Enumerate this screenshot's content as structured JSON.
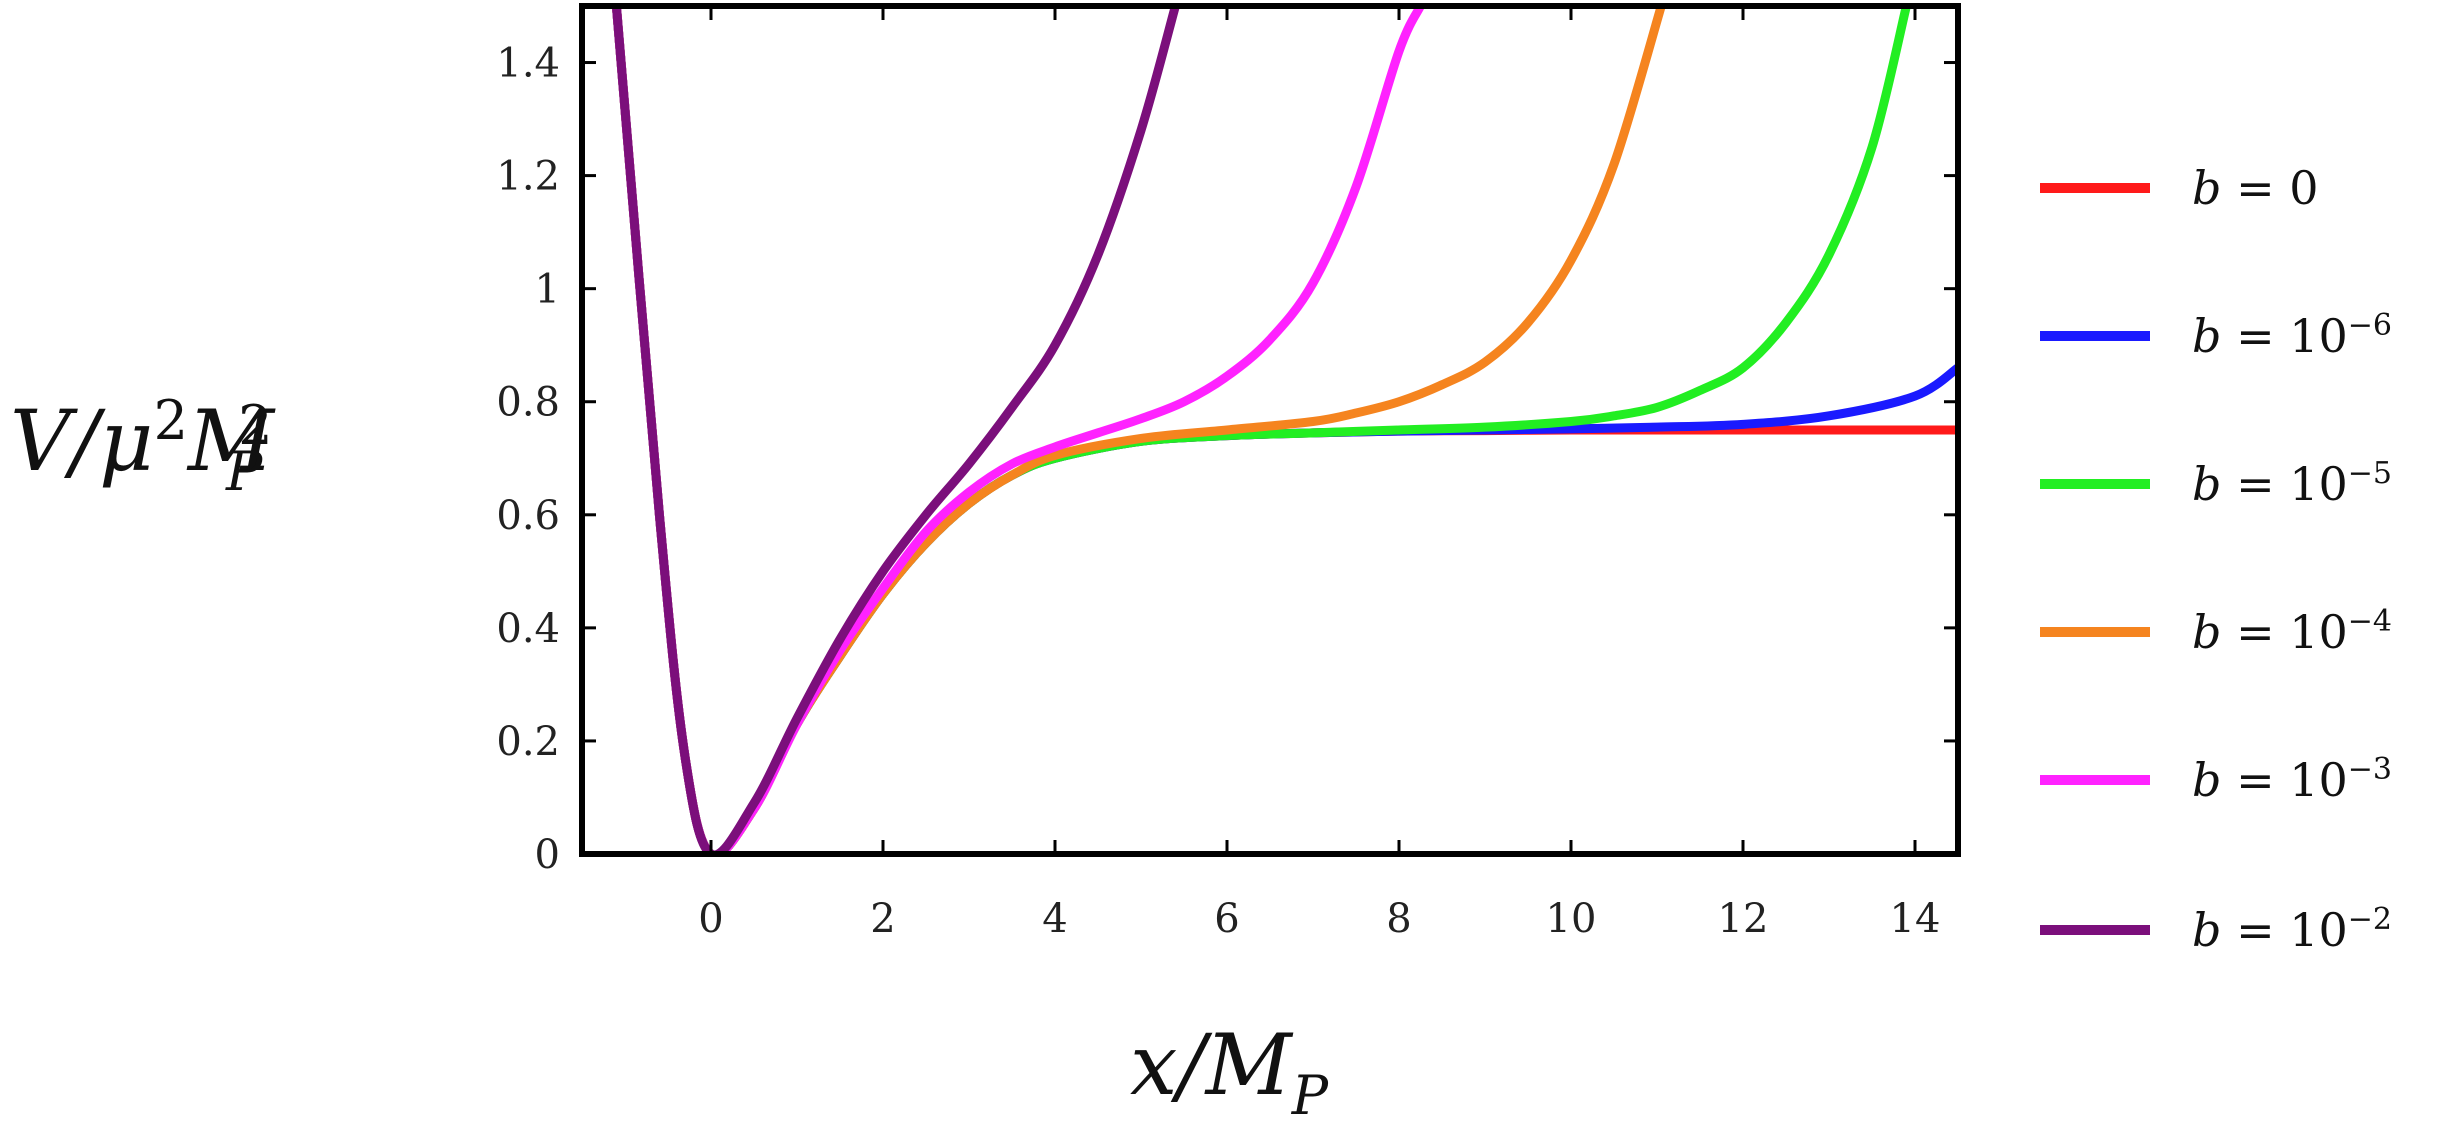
{
  "chart_data": {
    "type": "line",
    "xlabel": "x/M_P",
    "ylabel": "V/μ²M_P²",
    "xlim": [
      -1.5,
      14.5
    ],
    "ylim": [
      0,
      1.5
    ],
    "x_ticks": [
      0,
      2,
      4,
      6,
      8,
      10,
      12,
      14
    ],
    "y_ticks": [
      0,
      0.2,
      0.4,
      0.6,
      0.8,
      1,
      1.2,
      1.4
    ],
    "x_tick_labels": [
      "0",
      "2",
      "4",
      "6",
      "8",
      "10",
      "12",
      "14"
    ],
    "y_tick_labels": [
      "0",
      "0.2",
      "0.4",
      "0.6",
      "0.8",
      "1",
      "1.2",
      "1.4"
    ],
    "grid": false,
    "legend_position": "right",
    "series": [
      {
        "name": "b = 0",
        "label_base": "b = 0",
        "label_exponent": "",
        "color": "#ff1a1a",
        "x": [
          -1.1,
          -0.6,
          -0.3,
          0,
          0.5,
          1,
          1.5,
          2,
          2.5,
          3,
          3.5,
          4,
          5,
          6,
          7,
          8,
          9,
          10,
          11,
          12,
          13,
          14,
          14.5
        ],
        "y": [
          1.5,
          0.6,
          0.17,
          0,
          0.08,
          0.23,
          0.35,
          0.46,
          0.55,
          0.62,
          0.67,
          0.7,
          0.73,
          0.74,
          0.745,
          0.748,
          0.749,
          0.75,
          0.75,
          0.75,
          0.75,
          0.75,
          0.75
        ]
      },
      {
        "name": "b = 10^-6",
        "label_base": "b = 10",
        "label_exponent": "−6",
        "color": "#1a1aff",
        "x": [
          -1.1,
          -0.6,
          -0.3,
          0,
          0.5,
          1,
          1.5,
          2,
          2.5,
          3,
          3.5,
          4,
          5,
          6,
          7,
          8,
          9,
          10,
          11,
          12,
          13,
          14,
          14.5
        ],
        "y": [
          1.5,
          0.6,
          0.17,
          0,
          0.08,
          0.23,
          0.35,
          0.46,
          0.55,
          0.62,
          0.67,
          0.7,
          0.73,
          0.74,
          0.745,
          0.748,
          0.75,
          0.752,
          0.755,
          0.76,
          0.775,
          0.81,
          0.86
        ]
      },
      {
        "name": "b = 10^-5",
        "label_base": "b = 10",
        "label_exponent": "−5",
        "color": "#22ee22",
        "x": [
          -1.1,
          -0.6,
          -0.3,
          0,
          0.5,
          1,
          1.5,
          2,
          2.5,
          3,
          3.5,
          4,
          5,
          6,
          7,
          8,
          9,
          10,
          10.5,
          11,
          11.5,
          12,
          12.5,
          13,
          13.5,
          13.9
        ],
        "y": [
          1.5,
          0.6,
          0.17,
          0,
          0.08,
          0.23,
          0.35,
          0.46,
          0.55,
          0.62,
          0.67,
          0.7,
          0.73,
          0.74,
          0.745,
          0.75,
          0.755,
          0.765,
          0.775,
          0.79,
          0.82,
          0.86,
          0.94,
          1.06,
          1.25,
          1.5
        ]
      },
      {
        "name": "b = 10^-4",
        "label_base": "b = 10",
        "label_exponent": "−4",
        "color": "#f5841f",
        "x": [
          -1.1,
          -0.6,
          -0.3,
          0,
          0.5,
          1,
          1.5,
          2,
          2.5,
          3,
          3.5,
          4,
          5,
          6,
          7,
          7.5,
          8,
          8.5,
          9,
          9.5,
          10,
          10.5,
          11.05
        ],
        "y": [
          1.5,
          0.6,
          0.17,
          0,
          0.08,
          0.23,
          0.35,
          0.46,
          0.55,
          0.62,
          0.67,
          0.705,
          0.735,
          0.75,
          0.765,
          0.78,
          0.8,
          0.83,
          0.87,
          0.94,
          1.05,
          1.22,
          1.5
        ]
      },
      {
        "name": "b = 10^-3",
        "label_base": "b = 10",
        "label_exponent": "−3",
        "color": "#ff22ff",
        "x": [
          -1.1,
          -0.6,
          -0.3,
          0,
          0.5,
          1,
          1.5,
          2,
          2.5,
          3,
          3.5,
          4,
          4.5,
          5,
          5.5,
          6,
          6.5,
          7,
          7.5,
          8,
          8.25
        ],
        "y": [
          1.5,
          0.6,
          0.17,
          0,
          0.08,
          0.23,
          0.36,
          0.47,
          0.57,
          0.64,
          0.69,
          0.72,
          0.745,
          0.77,
          0.8,
          0.845,
          0.91,
          1.01,
          1.18,
          1.42,
          1.5
        ]
      },
      {
        "name": "b = 10^-2",
        "label_base": "b = 10",
        "label_exponent": "−2",
        "color": "#7b0f7b",
        "x": [
          -1.1,
          -0.6,
          -0.3,
          0,
          0.5,
          1,
          1.5,
          2,
          2.5,
          3,
          3.5,
          4,
          4.5,
          5,
          5.4
        ],
        "y": [
          1.5,
          0.6,
          0.17,
          0,
          0.09,
          0.24,
          0.38,
          0.5,
          0.6,
          0.69,
          0.79,
          0.9,
          1.06,
          1.28,
          1.5
        ]
      }
    ]
  }
}
